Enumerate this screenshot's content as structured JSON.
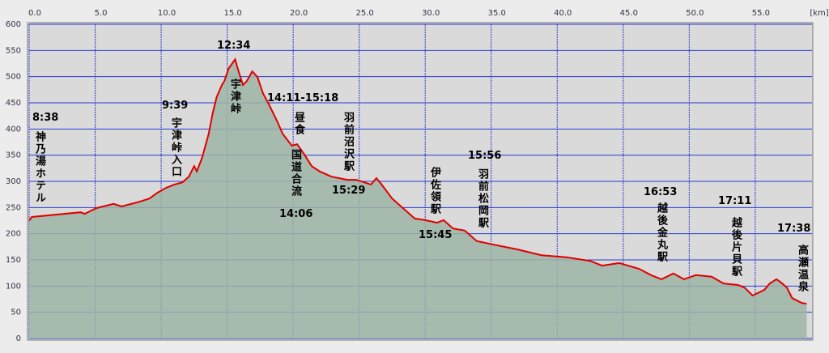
{
  "chart_data": {
    "type": "area",
    "x": [
      0,
      0.2,
      3.9,
      4.2,
      5.1,
      6.4,
      7.0,
      8.2,
      9.1,
      9.7,
      10.4,
      11.0,
      11.6,
      12.1,
      12.5,
      12.7,
      13.1,
      13.6,
      13.9,
      14.2,
      14.6,
      14.8,
      15.1,
      15.6,
      15.9,
      16.2,
      16.5,
      16.9,
      17.3,
      17.7,
      18.2,
      18.8,
      19.2,
      19.9,
      20.3,
      20.8,
      21.4,
      22.0,
      22.9,
      23.5,
      24.1,
      24.8,
      25.4,
      25.9,
      26.3,
      26.7,
      27.5,
      28.4,
      29.2,
      30.0,
      30.9,
      31.4,
      32.1,
      33.0,
      33.9,
      35.2,
      37.0,
      38.8,
      40.7,
      42.5,
      43.4,
      44.7,
      46.2,
      47.1,
      47.9,
      48.8,
      49.6,
      50.5,
      51.7,
      52.6,
      53.7,
      54.2,
      54.8,
      55.7,
      56.1,
      56.6,
      56.9,
      57.4,
      57.8,
      58.5,
      58.9
    ],
    "values": [
      225,
      232,
      241,
      238,
      249,
      257,
      252,
      260,
      267,
      278,
      288,
      294,
      298,
      309,
      329,
      319,
      345,
      391,
      430,
      461,
      484,
      492,
      515,
      533,
      507,
      484,
      492,
      510,
      499,
      469,
      445,
      414,
      391,
      368,
      371,
      353,
      329,
      319,
      309,
      306,
      303,
      303,
      298,
      294,
      306,
      294,
      267,
      247,
      229,
      226,
      221,
      226,
      210,
      206,
      186,
      179,
      170,
      159,
      155,
      148,
      139,
      144,
      133,
      121,
      113,
      124,
      113,
      121,
      118,
      105,
      102,
      97,
      82,
      93,
      105,
      113,
      108,
      97,
      77,
      68,
      66
    ],
    "color": "#e00000",
    "fill": "#9db4a6",
    "xlim": [
      0,
      59.3
    ],
    "ylim": [
      0,
      600
    ],
    "xticks": [
      {
        "value": 0,
        "label": "0.0"
      },
      {
        "value": 5,
        "label": "5.0"
      },
      {
        "value": 10,
        "label": "10.0"
      },
      {
        "value": 15,
        "label": "15.0"
      },
      {
        "value": 20,
        "label": "20.0"
      },
      {
        "value": 25,
        "label": "25.0"
      },
      {
        "value": 30,
        "label": "30.0"
      },
      {
        "value": 35,
        "label": "35.0"
      },
      {
        "value": 40,
        "label": "40.0"
      },
      {
        "value": 45,
        "label": "45.0"
      },
      {
        "value": 50,
        "label": "50.0"
      },
      {
        "value": 55,
        "label": "55.0"
      }
    ],
    "yticks": [
      0,
      50,
      100,
      150,
      200,
      250,
      300,
      350,
      400,
      450,
      500,
      550,
      600
    ],
    "x_unit": "[km]",
    "grid": true,
    "annotations": [
      "8:38",
      "神乃湯ホテル",
      "9:39",
      "宇津峠入口",
      "12:34",
      "宇津峠",
      "14:11-15:18",
      "昼食",
      "国道合流",
      "14:06",
      "羽前沼沢駅",
      "15:29",
      "伊佐領駅",
      "15:45",
      "15:56",
      "羽前松岡駅",
      "16:53",
      "越後金丸駅",
      "17:11",
      "越後片貝駅",
      "17:38",
      "高瀬温泉"
    ]
  }
}
